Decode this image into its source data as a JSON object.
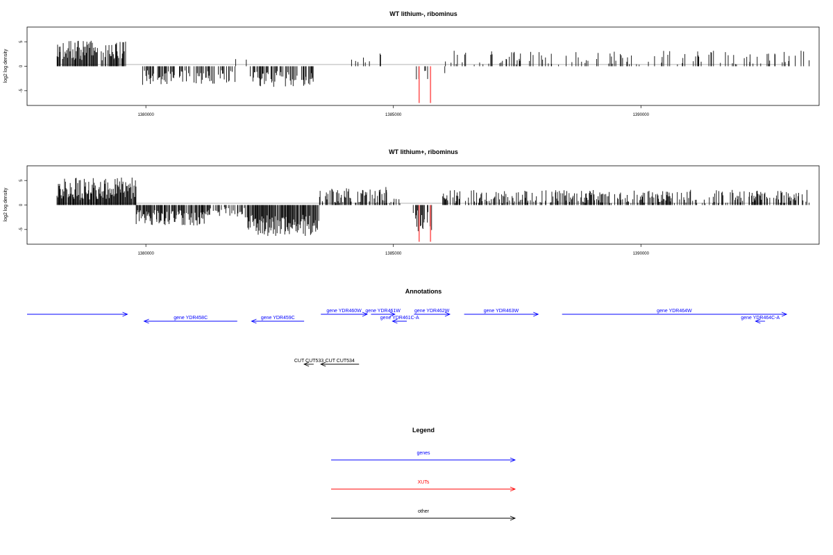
{
  "colors": {
    "genes": "#0000ff",
    "xuts": "#ff0000",
    "other": "#000000",
    "signal": "#000000",
    "neg_highlight": "#ff6a6a",
    "baseline": "#999999"
  },
  "chart_data": [
    {
      "type": "bar",
      "title": "WT lithium-, ribominus",
      "ylabel": "log2 log density",
      "xlim": [
        1377600,
        1393600
      ],
      "ylim": [
        -8,
        8
      ],
      "xticks": [
        1380000,
        1385000,
        1390000
      ],
      "xtick_labels": [
        "1380000",
        "1385000",
        "1390000"
      ],
      "yticks": [
        5,
        0,
        -5
      ],
      "ytick_labels": [
        "5",
        "0",
        "-5"
      ],
      "signal_segments": [
        {
          "from": 1378200,
          "to": 1379600,
          "mean": 3.2,
          "amp": 2.0,
          "density": 0.8,
          "sign": 1
        },
        {
          "from": 1379900,
          "to": 1381800,
          "mean": -2.3,
          "amp": 1.5,
          "density": 0.45,
          "sign": -1
        },
        {
          "from": 1381800,
          "to": 1382100,
          "mean": 1.5,
          "amp": 0.5,
          "density": 0.05,
          "sign": 1
        },
        {
          "from": 1382100,
          "to": 1383400,
          "mean": -2.6,
          "amp": 1.6,
          "density": 0.55,
          "sign": -1
        },
        {
          "from": 1383800,
          "to": 1384900,
          "mean": 1.8,
          "amp": 1.6,
          "density": 0.12,
          "sign": 1
        },
        {
          "from": 1384400,
          "to": 1384550,
          "mean": 0.8,
          "amp": 0.3,
          "density": 0.1,
          "sign": 1
        },
        {
          "from": 1385420,
          "to": 1385700,
          "mean": -1.8,
          "amp": 1.2,
          "density": 0.2,
          "sign": -1
        },
        {
          "from": 1385950,
          "to": 1386050,
          "mean": -1.5,
          "amp": 0.5,
          "density": 0.2,
          "sign": -1
        },
        {
          "from": 1386050,
          "to": 1393400,
          "mean": 1.7,
          "amp": 1.5,
          "density": 0.22,
          "sign": 1
        }
      ],
      "highlight_bars": [
        {
          "x": 1385520,
          "y": -7.5
        },
        {
          "x": 1385750,
          "y": -7.5
        }
      ]
    },
    {
      "type": "bar",
      "title": "WT lithium+, ribominus",
      "ylabel": "log2 log density",
      "xlim": [
        1377600,
        1393600
      ],
      "ylim": [
        -8,
        8
      ],
      "xticks": [
        1380000,
        1385000,
        1390000
      ],
      "xtick_labels": [
        "1380000",
        "1385000",
        "1390000"
      ],
      "yticks": [
        5,
        0,
        -5
      ],
      "ytick_labels": [
        "5",
        "0",
        "-5"
      ],
      "signal_segments": [
        {
          "from": 1378200,
          "to": 1379800,
          "mean": 3.3,
          "amp": 2.3,
          "density": 0.95,
          "sign": 1
        },
        {
          "from": 1379800,
          "to": 1381200,
          "mean": -2.6,
          "amp": 1.6,
          "density": 0.85,
          "sign": -1
        },
        {
          "from": 1381200,
          "to": 1382000,
          "mean": -1.4,
          "amp": 1.0,
          "density": 0.5,
          "sign": -1
        },
        {
          "from": 1382000,
          "to": 1383500,
          "mean": -4.2,
          "amp": 2.2,
          "density": 0.95,
          "sign": -1
        },
        {
          "from": 1383500,
          "to": 1384900,
          "mean": 1.8,
          "amp": 1.7,
          "density": 0.55,
          "sign": 1
        },
        {
          "from": 1384700,
          "to": 1384900,
          "mean": 2.5,
          "amp": 2.5,
          "density": 0.3,
          "sign": 1
        },
        {
          "from": 1384900,
          "to": 1385200,
          "mean": 0.8,
          "amp": 0.6,
          "density": 0.3,
          "sign": 1
        },
        {
          "from": 1385400,
          "to": 1385800,
          "mean": -3.2,
          "amp": 2.2,
          "density": 0.7,
          "sign": -1
        },
        {
          "from": 1385950,
          "to": 1393400,
          "mean": 1.7,
          "amp": 1.4,
          "density": 0.55,
          "sign": 1
        }
      ],
      "highlight_bars": [
        {
          "x": 1385520,
          "y": -7.5
        },
        {
          "x": 1385750,
          "y": -7.5
        }
      ]
    }
  ],
  "annotations": {
    "title": "Annotations",
    "xlim": [
      1377600,
      1393600
    ],
    "items": [
      {
        "label": "",
        "from": 1377600,
        "to": 1379700,
        "track": 0,
        "color": "genes",
        "dir": "right"
      },
      {
        "label": "gene YDR458C",
        "from": 1380050,
        "to": 1382000,
        "track": 1,
        "color": "genes",
        "dir": "left"
      },
      {
        "label": "gene YDR459C",
        "from": 1382300,
        "to": 1383400,
        "track": 1,
        "color": "genes",
        "dir": "left"
      },
      {
        "label": "gene YDR460W",
        "from": 1383750,
        "to": 1384720,
        "track": 0,
        "color": "genes",
        "dir": "right"
      },
      {
        "label": "gene YDR461W",
        "from": 1384800,
        "to": 1385300,
        "track": 0,
        "color": "genes",
        "dir": "right"
      },
      {
        "label": "gene YDR461C-A",
        "from": 1385250,
        "to": 1385550,
        "track": 1,
        "color": "genes",
        "dir": "left"
      },
      {
        "label": "gene YDR462W",
        "from": 1385700,
        "to": 1386450,
        "track": 0,
        "color": "genes",
        "dir": "right"
      },
      {
        "label": "gene YDR463W",
        "from": 1386750,
        "to": 1388300,
        "track": 0,
        "color": "genes",
        "dir": "right"
      },
      {
        "label": "gene YDR464W",
        "from": 1388800,
        "to": 1393500,
        "track": 0,
        "color": "genes",
        "dir": "right"
      },
      {
        "label": "gene YDR464C-A",
        "from": 1392850,
        "to": 1393050,
        "track": 1,
        "color": "genes",
        "dir": "left"
      },
      {
        "label": "CUT CUT533",
        "from": 1383400,
        "to": 1383600,
        "track": 6,
        "color": "other",
        "dir": "left"
      },
      {
        "label": "CUT CUT534",
        "from": 1383750,
        "to": 1384550,
        "track": 6,
        "color": "other",
        "dir": "left"
      }
    ]
  },
  "legend": {
    "title": "Legend",
    "items": [
      {
        "label": "genes",
        "color": "genes"
      },
      {
        "label": "XUTs",
        "color": "xuts"
      },
      {
        "label": "other",
        "color": "other"
      }
    ]
  }
}
